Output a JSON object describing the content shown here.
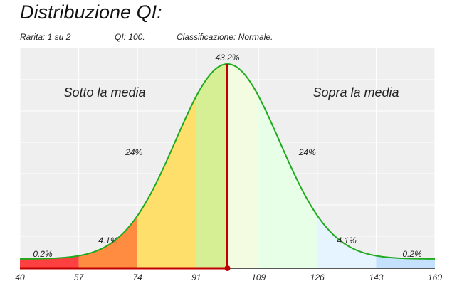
{
  "header": {
    "title": "Distribuzione QI:",
    "rarity": "Rarita: 1 su 2",
    "iq": "QI: 100.",
    "classification": "Classificazione: Normale."
  },
  "chart_data": {
    "type": "area",
    "title": "Distribuzione QI:",
    "mean": 100,
    "sd": 15,
    "xlim": [
      40,
      160
    ],
    "x_ticks": [
      40,
      57,
      74,
      91,
      109,
      126,
      143,
      160
    ],
    "peak_label": "43.2%",
    "marker_value": 100,
    "region_labels": {
      "below": "Sotto la media",
      "above": "Sopra la media"
    },
    "bands": [
      {
        "from": 40,
        "to": 57,
        "color": "#ff4040",
        "label": "0.2%"
      },
      {
        "from": 57,
        "to": 74,
        "color": "#ff8c40",
        "label": "4.1%"
      },
      {
        "from": 74,
        "to": 91,
        "color": "#ffdf6b",
        "label": "24%"
      },
      {
        "from": 91,
        "to": 100,
        "color": "#d7ef94",
        "label": ""
      },
      {
        "from": 100,
        "to": 109,
        "color": "#f3fce0",
        "label": ""
      },
      {
        "from": 109,
        "to": 126,
        "color": "#e6ffe6",
        "label": "24%"
      },
      {
        "from": 126,
        "to": 143,
        "color": "#e6f4ff",
        "label": "4.1%"
      },
      {
        "from": 143,
        "to": 160,
        "color": "#c4e2ff",
        "label": "0.2%"
      }
    ],
    "colors": {
      "curve": "#1faa1f",
      "marker": "#c00000",
      "background": "#efefef",
      "grid": "#ffffff"
    },
    "grid": true
  }
}
